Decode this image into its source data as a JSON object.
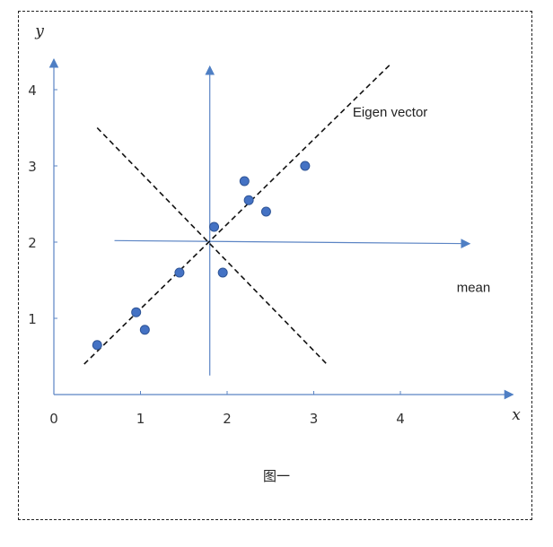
{
  "chart_data": {
    "type": "scatter",
    "xlabel": "x",
    "ylabel": "y",
    "xlim": [
      0,
      5.3
    ],
    "ylim": [
      0,
      4.4
    ],
    "xticks": [
      0,
      1,
      2,
      3,
      4
    ],
    "yticks": [
      1,
      2,
      3,
      4
    ],
    "grid": false,
    "points": [
      {
        "x": 0.5,
        "y": 0.65
      },
      {
        "x": 0.95,
        "y": 1.08
      },
      {
        "x": 1.05,
        "y": 0.85
      },
      {
        "x": 1.45,
        "y": 1.6
      },
      {
        "x": 1.85,
        "y": 2.2
      },
      {
        "x": 1.95,
        "y": 1.6
      },
      {
        "x": 2.2,
        "y": 2.8
      },
      {
        "x": 2.25,
        "y": 2.55
      },
      {
        "x": 2.45,
        "y": 2.4
      },
      {
        "x": 2.9,
        "y": 3.0
      }
    ],
    "mean": {
      "x": 1.8,
      "y": 2.0
    },
    "mean_axes": {
      "vertical": {
        "x": 1.8,
        "y_from": 0.25,
        "y_to": 4.4
      },
      "horizontal": {
        "y_from": 2.02,
        "y_to": 1.98,
        "x_from": 0.7,
        "x_to": 4.8
      }
    },
    "eigen_lines": [
      {
        "x1": 0.35,
        "y1": 0.4,
        "x2": 3.9,
        "y2": 4.35
      },
      {
        "x1": 0.5,
        "y1": 3.5,
        "x2": 3.15,
        "y2": 0.4
      }
    ],
    "annotations": [
      {
        "text": "Eigen vector",
        "x": 3.45,
        "y": 3.65
      },
      {
        "text": "mean",
        "x": 4.65,
        "y": 1.35
      }
    ],
    "colors": {
      "point": "#4472c4",
      "point_edge": "#2f5597",
      "axis": "#5b84c4",
      "dashed": "#111111"
    }
  },
  "caption": "图一"
}
